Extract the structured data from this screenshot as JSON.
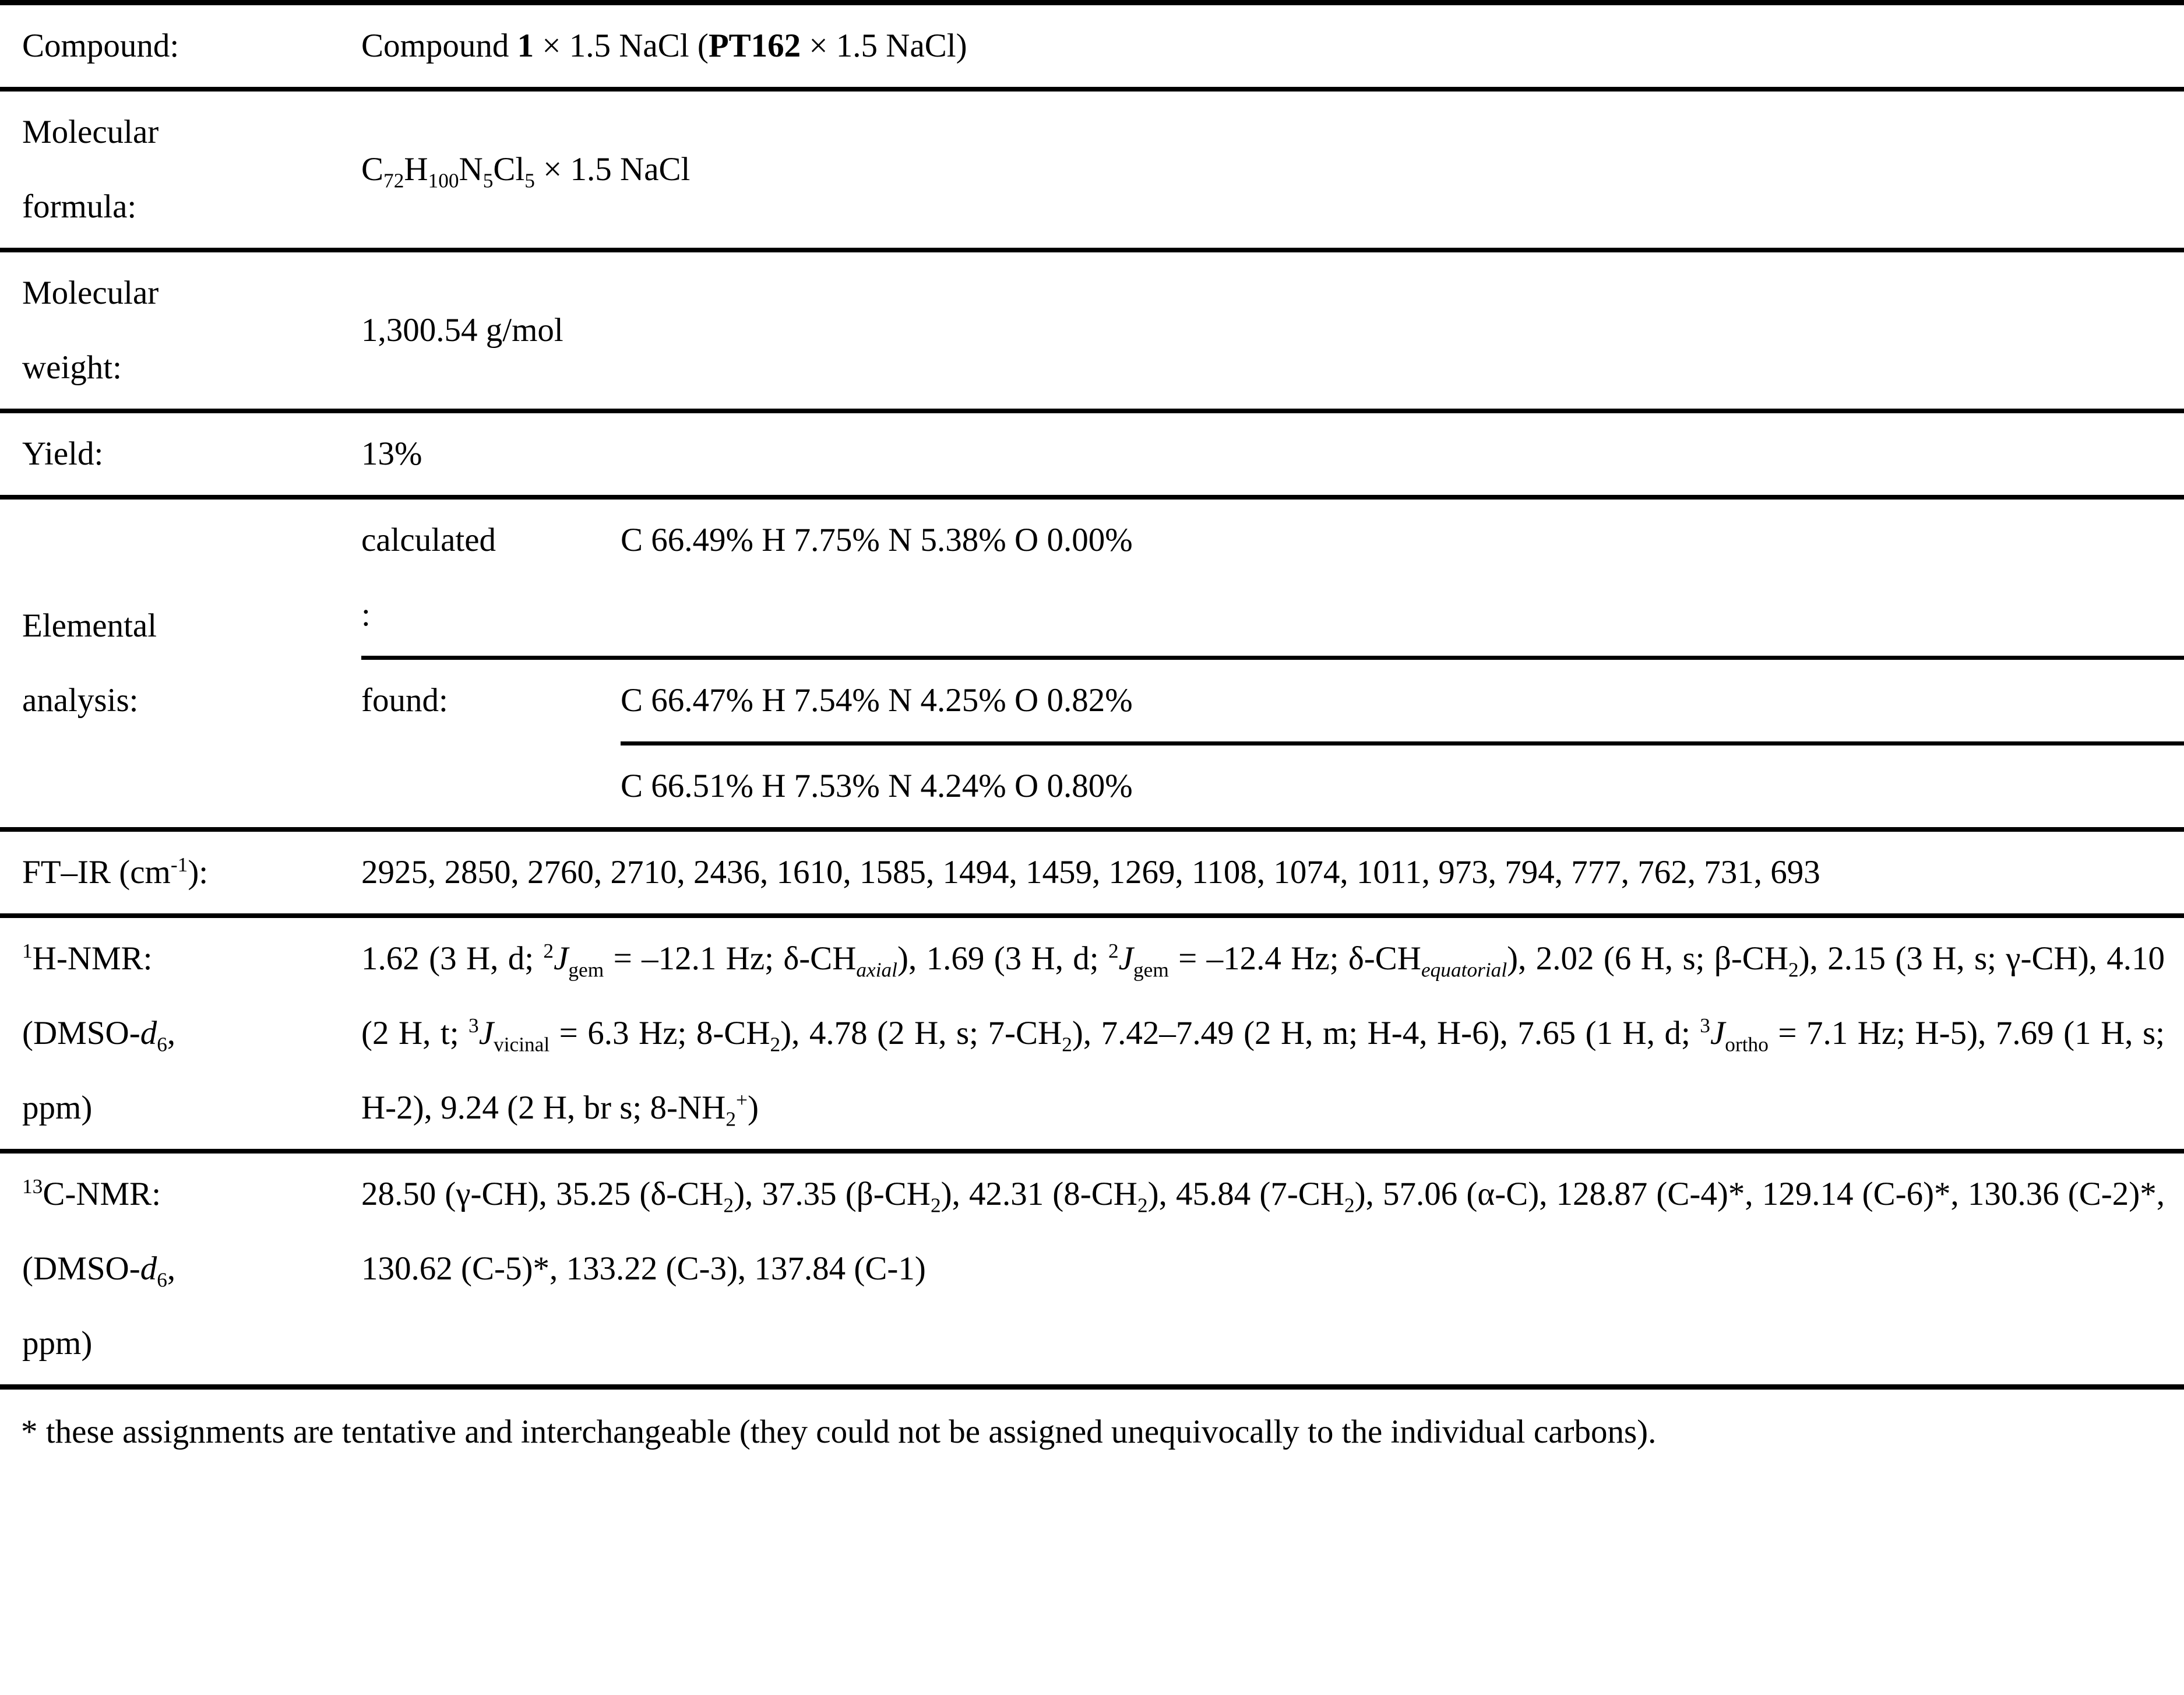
{
  "rows": {
    "compound": {
      "label": "Compound:",
      "value": "Compound <b>1</b> × 1.5 NaCl (<b>PT162</b> × 1.5 NaCl)"
    },
    "molecular_formula": {
      "label_line1": "Molecular",
      "label_line2": "formula:",
      "value": "C<sub>72</sub>H<sub>100</sub>N<sub>5</sub>Cl<sub>5</sub> × 1.5 NaCl"
    },
    "molecular_weight": {
      "label_line1": "Molecular",
      "label_line2": "weight:",
      "value": "1,300.54 g/mol"
    },
    "yield": {
      "label": "Yield:",
      "value": "13%"
    },
    "elemental_analysis": {
      "label_line1": "Elemental",
      "label_line2": "analysis:",
      "calculated_label_line1": "calculated",
      "calculated_label_line2": ":",
      "calculated_value": "C 66.49% H 7.75% N 5.38% O 0.00%",
      "found_label": "found:",
      "found_value_line1": "C 66.47% H 7.54% N 4.25% O 0.82%",
      "found_value_line2": "C 66.51% H 7.53% N 4.24% O 0.80%"
    },
    "ftir": {
      "label": "FT–IR (cm<sup>-1</sup>):",
      "value": "2925, 2850, 2760, 2710, 2436, 1610, 1585, 1494, 1459, 1269, 1108, 1074, 1011, 973, 794, 777, 762, 731, 693"
    },
    "h_nmr": {
      "label_line1": "<sup>1</sup>H-NMR:",
      "label_line2": "(DMSO-<i>d</i><sub>6</sub>,",
      "label_line3": "ppm)",
      "value": "1.62 (3 H, d; <sup>2</sup><i>J</i><sub>gem</sub> = –12.1 Hz; δ-CH<sub><i>axial</i></sub>), 1.69 (3 H, d; <sup>2</sup><i>J</i><sub>gem</sub> = –12.4 Hz; δ-CH<sub><i>equatorial</i></sub>), 2.02 (6 H, s; β-CH<sub>2</sub>), 2.15 (3 H, s; γ-CH), 4.10 (2 H, t; <sup>3</sup><i>J</i><sub>vicinal</sub> = 6.3 Hz; 8-CH<sub>2</sub>), 4.78 (2 H, s; 7-CH<sub>2</sub>), 7.42–7.49 (2 H, m; H-4, H-6), 7.65 (1 H, d; <sup>3</sup><i>J</i><sub>ortho</sub> = 7.1 Hz; H-5), 7.69 (1 H, s; H-2), 9.24 (2 H, br s; 8-NH<sub>2</sub><sup>+</sup>)"
    },
    "c_nmr": {
      "label_line1": "<sup>13</sup>C-NMR:",
      "label_line2": "(DMSO-<i>d</i><sub>6</sub>,",
      "label_line3": "ppm)",
      "value": "28.50 (γ-CH), 35.25 (δ-CH<sub>2</sub>), 37.35 (β-CH<sub>2</sub>), 42.31 (8-CH<sub>2</sub>), 45.84 (7-CH<sub>2</sub>), 57.06 (α-C), 128.87 (C-4)*, 129.14 (C-6)*, 130.36 (C-2)*, 130.62 (C-5)*, 133.22 (C-3), 137.84 (C-1)"
    }
  },
  "footnote": "* these assignments are tentative and interchangeable (they could not be assigned unequivocally to the individual carbons)."
}
